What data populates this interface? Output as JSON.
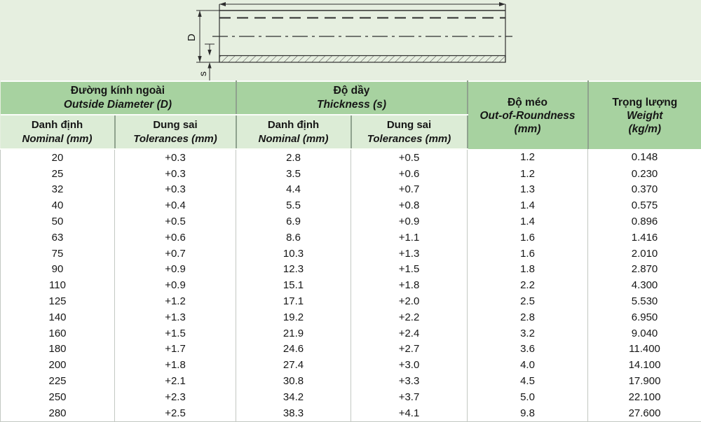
{
  "diagram": {
    "diameter_label": "D",
    "thickness_label": "s"
  },
  "table": {
    "col_groups": [
      {
        "title_vi": "Đường kính ngoài",
        "title_en": "Outside Diameter (D)"
      },
      {
        "title_vi": "Độ dầy",
        "title_en": "Thickness (s)"
      },
      {
        "title_vi": "Độ méo",
        "title_en": "Out-of-Roundness",
        "unit": "(mm)"
      },
      {
        "title_vi": "Trọng lượng",
        "title_en": "Weight",
        "unit": "(kg/m)"
      }
    ],
    "sub_headers": [
      {
        "vi": "Danh định",
        "en": "Nominal (mm)"
      },
      {
        "vi": "Dung sai",
        "en": "Tolerances (mm)"
      },
      {
        "vi": "Danh định",
        "en": "Nominal (mm)"
      },
      {
        "vi": "Dung sai",
        "en": "Tolerances (mm)"
      }
    ],
    "rows": [
      [
        "20",
        "+0.3",
        "2.8",
        "+0.5",
        "1.2",
        "0.148"
      ],
      [
        "25",
        "+0.3",
        "3.5",
        "+0.6",
        "1.2",
        "0.230"
      ],
      [
        "32",
        "+0.3",
        "4.4",
        "+0.7",
        "1.3",
        "0.370"
      ],
      [
        "40",
        "+0.4",
        "5.5",
        "+0.8",
        "1.4",
        "0.575"
      ],
      [
        "50",
        "+0.5",
        "6.9",
        "+0.9",
        "1.4",
        "0.896"
      ],
      [
        "63",
        "+0.6",
        "8.6",
        "+1.1",
        "1.6",
        "1.416"
      ],
      [
        "75",
        "+0.7",
        "10.3",
        "+1.3",
        "1.6",
        "2.010"
      ],
      [
        "90",
        "+0.9",
        "12.3",
        "+1.5",
        "1.8",
        "2.870"
      ],
      [
        "110",
        "+0.9",
        "15.1",
        "+1.8",
        "2.2",
        "4.300"
      ],
      [
        "125",
        "+1.2",
        "17.1",
        "+2.0",
        "2.5",
        "5.530"
      ],
      [
        "140",
        "+1.3",
        "19.2",
        "+2.2",
        "2.8",
        "6.950"
      ],
      [
        "160",
        "+1.5",
        "21.9",
        "+2.4",
        "3.2",
        "9.040"
      ],
      [
        "180",
        "+1.7",
        "24.6",
        "+2.7",
        "3.6",
        "11.400"
      ],
      [
        "200",
        "+1.8",
        "27.4",
        "+3.0",
        "4.0",
        "14.100"
      ],
      [
        "225",
        "+2.1",
        "30.8",
        "+3.3",
        "4.5",
        "17.900"
      ],
      [
        "250",
        "+2.3",
        "34.2",
        "+3.7",
        "5.0",
        "22.100"
      ],
      [
        "280",
        "+2.5",
        "38.3",
        "+4.1",
        "9.8",
        "27.600"
      ]
    ]
  },
  "colors": {
    "page_background": "#e6efe0",
    "group_header": "#a7d2a0",
    "sub_header": "#dcecd6",
    "data_background": "#ffffff",
    "grid_line": "#c3c8c2",
    "header_divider": "#8fa28e",
    "drawing_line": "#2e2e2e"
  }
}
